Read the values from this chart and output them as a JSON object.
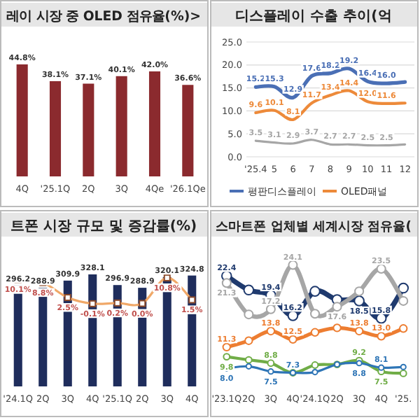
{
  "chart_data": [
    {
      "type": "bar",
      "title": "레이 시장 중 OLED 점유율(%)>",
      "categories": [
        "4Q",
        "'25.1Q",
        "2Q",
        "3Q",
        "4Qe",
        "'26.1Qe"
      ],
      "values": [
        44.8,
        38.1,
        37.1,
        40.1,
        42.0,
        36.6
      ],
      "value_labels": [
        "44.8%",
        "38.1%",
        "37.1%",
        "40.1%",
        "42.0%",
        "36.6%"
      ],
      "color": "#8b2a2e"
    },
    {
      "type": "line",
      "title": "디스플레이 수출 추이(억",
      "categories": [
        "'25.4",
        "5",
        "6",
        "7",
        "8",
        "9",
        "10",
        "11",
        "12"
      ],
      "ylim": [
        0,
        25
      ],
      "yticks": [
        {
          "value": 0,
          "label": "0.0"
        },
        {
          "value": 5,
          "label": "5.0"
        },
        {
          "value": 10,
          "label": "10.0"
        },
        {
          "value": 15,
          "label": "15.0"
        },
        {
          "value": 20,
          "label": "20.0"
        },
        {
          "value": 25,
          "label": "25.0"
        }
      ],
      "grid": "y",
      "legend": "bottom",
      "series": [
        {
          "name": "평판디스플레이",
          "color": "#4a6fb5",
          "values": [
            15.2,
            15.3,
            12.9,
            17.6,
            18.2,
            19.2,
            16.4,
            16.0,
            16.3
          ],
          "value_labels": [
            "15.2",
            "15.3",
            "12.9",
            "17.6",
            "18.2",
            "19.2",
            "16.4",
            "16.0",
            null
          ]
        },
        {
          "name": "OLED패널",
          "color": "#ed8a3a",
          "values": [
            9.6,
            10.1,
            8.1,
            11.7,
            13.4,
            14.4,
            12.0,
            11.6,
            11.7
          ],
          "value_labels": [
            "9.6",
            "10.1",
            "8.1",
            "11.7",
            "13.4",
            "14.4",
            "12.0",
            "11.6",
            null
          ]
        },
        {
          "color": "#a6a6a6",
          "values": [
            3.5,
            3.1,
            2.9,
            3.7,
            2.7,
            2.7,
            2.5,
            2.5,
            2.7
          ],
          "value_labels": [
            "3.5",
            "3.1",
            "2.9",
            "3.7",
            "2.7",
            "2.7",
            "2.5",
            "2.5",
            null
          ]
        }
      ]
    },
    {
      "type": "bar",
      "title": "트폰 시장 규모 및 증감률(%)",
      "categories": [
        "'24.1Q",
        "2Q",
        "3Q",
        "4Q",
        "'25.1Q",
        "2Q",
        "3Q",
        "4Q"
      ],
      "series": [
        {
          "type": "bar",
          "color": "#1f2d5c",
          "values": [
            296.2,
            288.9,
            309.9,
            328.1,
            296.9,
            288.9,
            320.1,
            324.8
          ],
          "value_labels": [
            "296.2",
            "288.9",
            "309.9",
            "328.1",
            "296.9",
            "288.9",
            "320.1",
            "324.8"
          ]
        },
        {
          "type": "line",
          "axis": "y2",
          "color": "#f0a868",
          "marker": "square",
          "values": [
            10.1,
            8.8,
            2.5,
            -0.1,
            0.2,
            0.0,
            10.8,
            1.5
          ],
          "value_labels": [
            "10.1%",
            "8.8%",
            "2.5%",
            "-0.1%",
            "0.2%",
            "0.0%",
            "10.8%",
            "1.5%"
          ]
        }
      ]
    },
    {
      "type": "line",
      "title": "스마트폰 업체별 세계시장 점유율(",
      "categories": [
        "'23.1Q",
        "2Q",
        "3Q",
        "4Q",
        "'24.1Q",
        "2Q",
        "3Q",
        "4Q",
        "'25."
      ],
      "marker": "circle",
      "series": [
        {
          "color": "#1f3a6e",
          "values": [
            22.4,
            20.2,
            19.4,
            16.2,
            20.0,
            18.7,
            18.5,
            15.8,
            20.5
          ],
          "value_labels": [
            "22.4",
            null,
            "19.4",
            "16.2",
            null,
            null,
            "18.5",
            "15.8",
            null
          ]
        },
        {
          "color": "#a6a6a6",
          "values": [
            21.3,
            16.4,
            17.2,
            24.1,
            16.5,
            17.6,
            20.0,
            23.5,
            18.5
          ],
          "value_labels": [
            "21.3",
            null,
            "17.2",
            "24.1",
            null,
            "17.6",
            null,
            "23.5",
            null
          ]
        },
        {
          "color": "#ed7d31",
          "values": [
            11.3,
            12.3,
            13.8,
            12.5,
            13.6,
            14.3,
            13.8,
            13.0,
            14.2
          ],
          "value_labels": [
            "11.3",
            null,
            "13.8",
            "12.5",
            null,
            null,
            "13.8",
            "13.0",
            null
          ]
        },
        {
          "color": "#70ad47",
          "values": [
            9.8,
            9.3,
            8.8,
            7.3,
            8.5,
            8.6,
            9.2,
            7.5,
            7.2
          ],
          "value_labels": [
            "9.8",
            null,
            "8.8",
            null,
            null,
            null,
            "9.2",
            "7.5",
            null
          ]
        },
        {
          "color": "#2e75b6",
          "values": [
            8.0,
            8.3,
            7.5,
            7.3,
            7.4,
            8.6,
            8.8,
            8.1,
            8.2
          ],
          "value_labels": [
            "8.0",
            null,
            "7.5",
            "7.3",
            null,
            null,
            "8.8",
            "8.1",
            null
          ]
        }
      ]
    }
  ]
}
